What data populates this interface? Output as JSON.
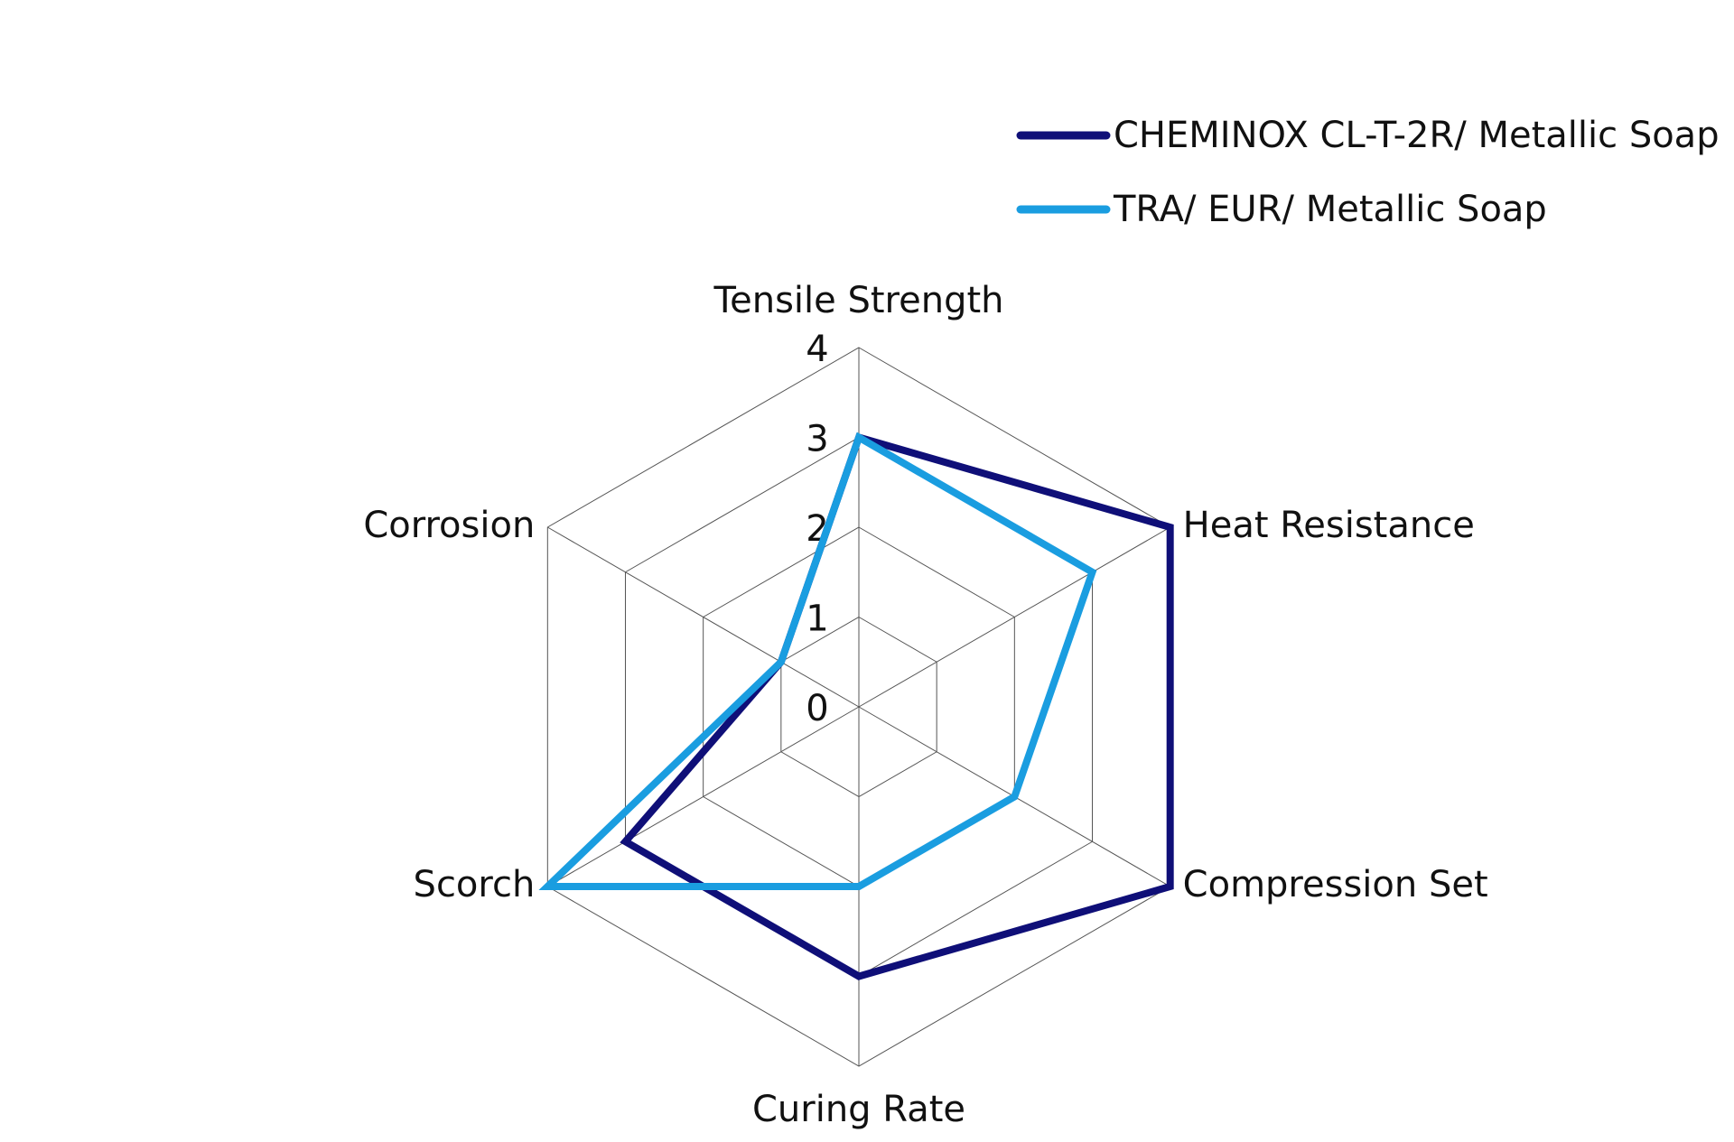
{
  "chart_data": {
    "type": "radar",
    "categories": [
      "Tensile Strength",
      "Heat Resistance",
      "Compression Set",
      "Curing Rate",
      "Scorch",
      "Corrosion"
    ],
    "series": [
      {
        "name": "CHEMINOX CL-T-2R/ Metallic Soap",
        "color": "#0f0f78",
        "values": [
          3,
          4,
          4,
          3,
          3,
          1
        ]
      },
      {
        "name": "TRA/ EUR/ Metallic Soap",
        "color": "#1a9de0",
        "values": [
          3,
          3,
          2,
          2,
          4,
          1
        ]
      }
    ],
    "rlim": [
      0,
      4
    ],
    "rticks": [
      0,
      1,
      2,
      3,
      4
    ],
    "grid": true,
    "legend": "top-right"
  }
}
